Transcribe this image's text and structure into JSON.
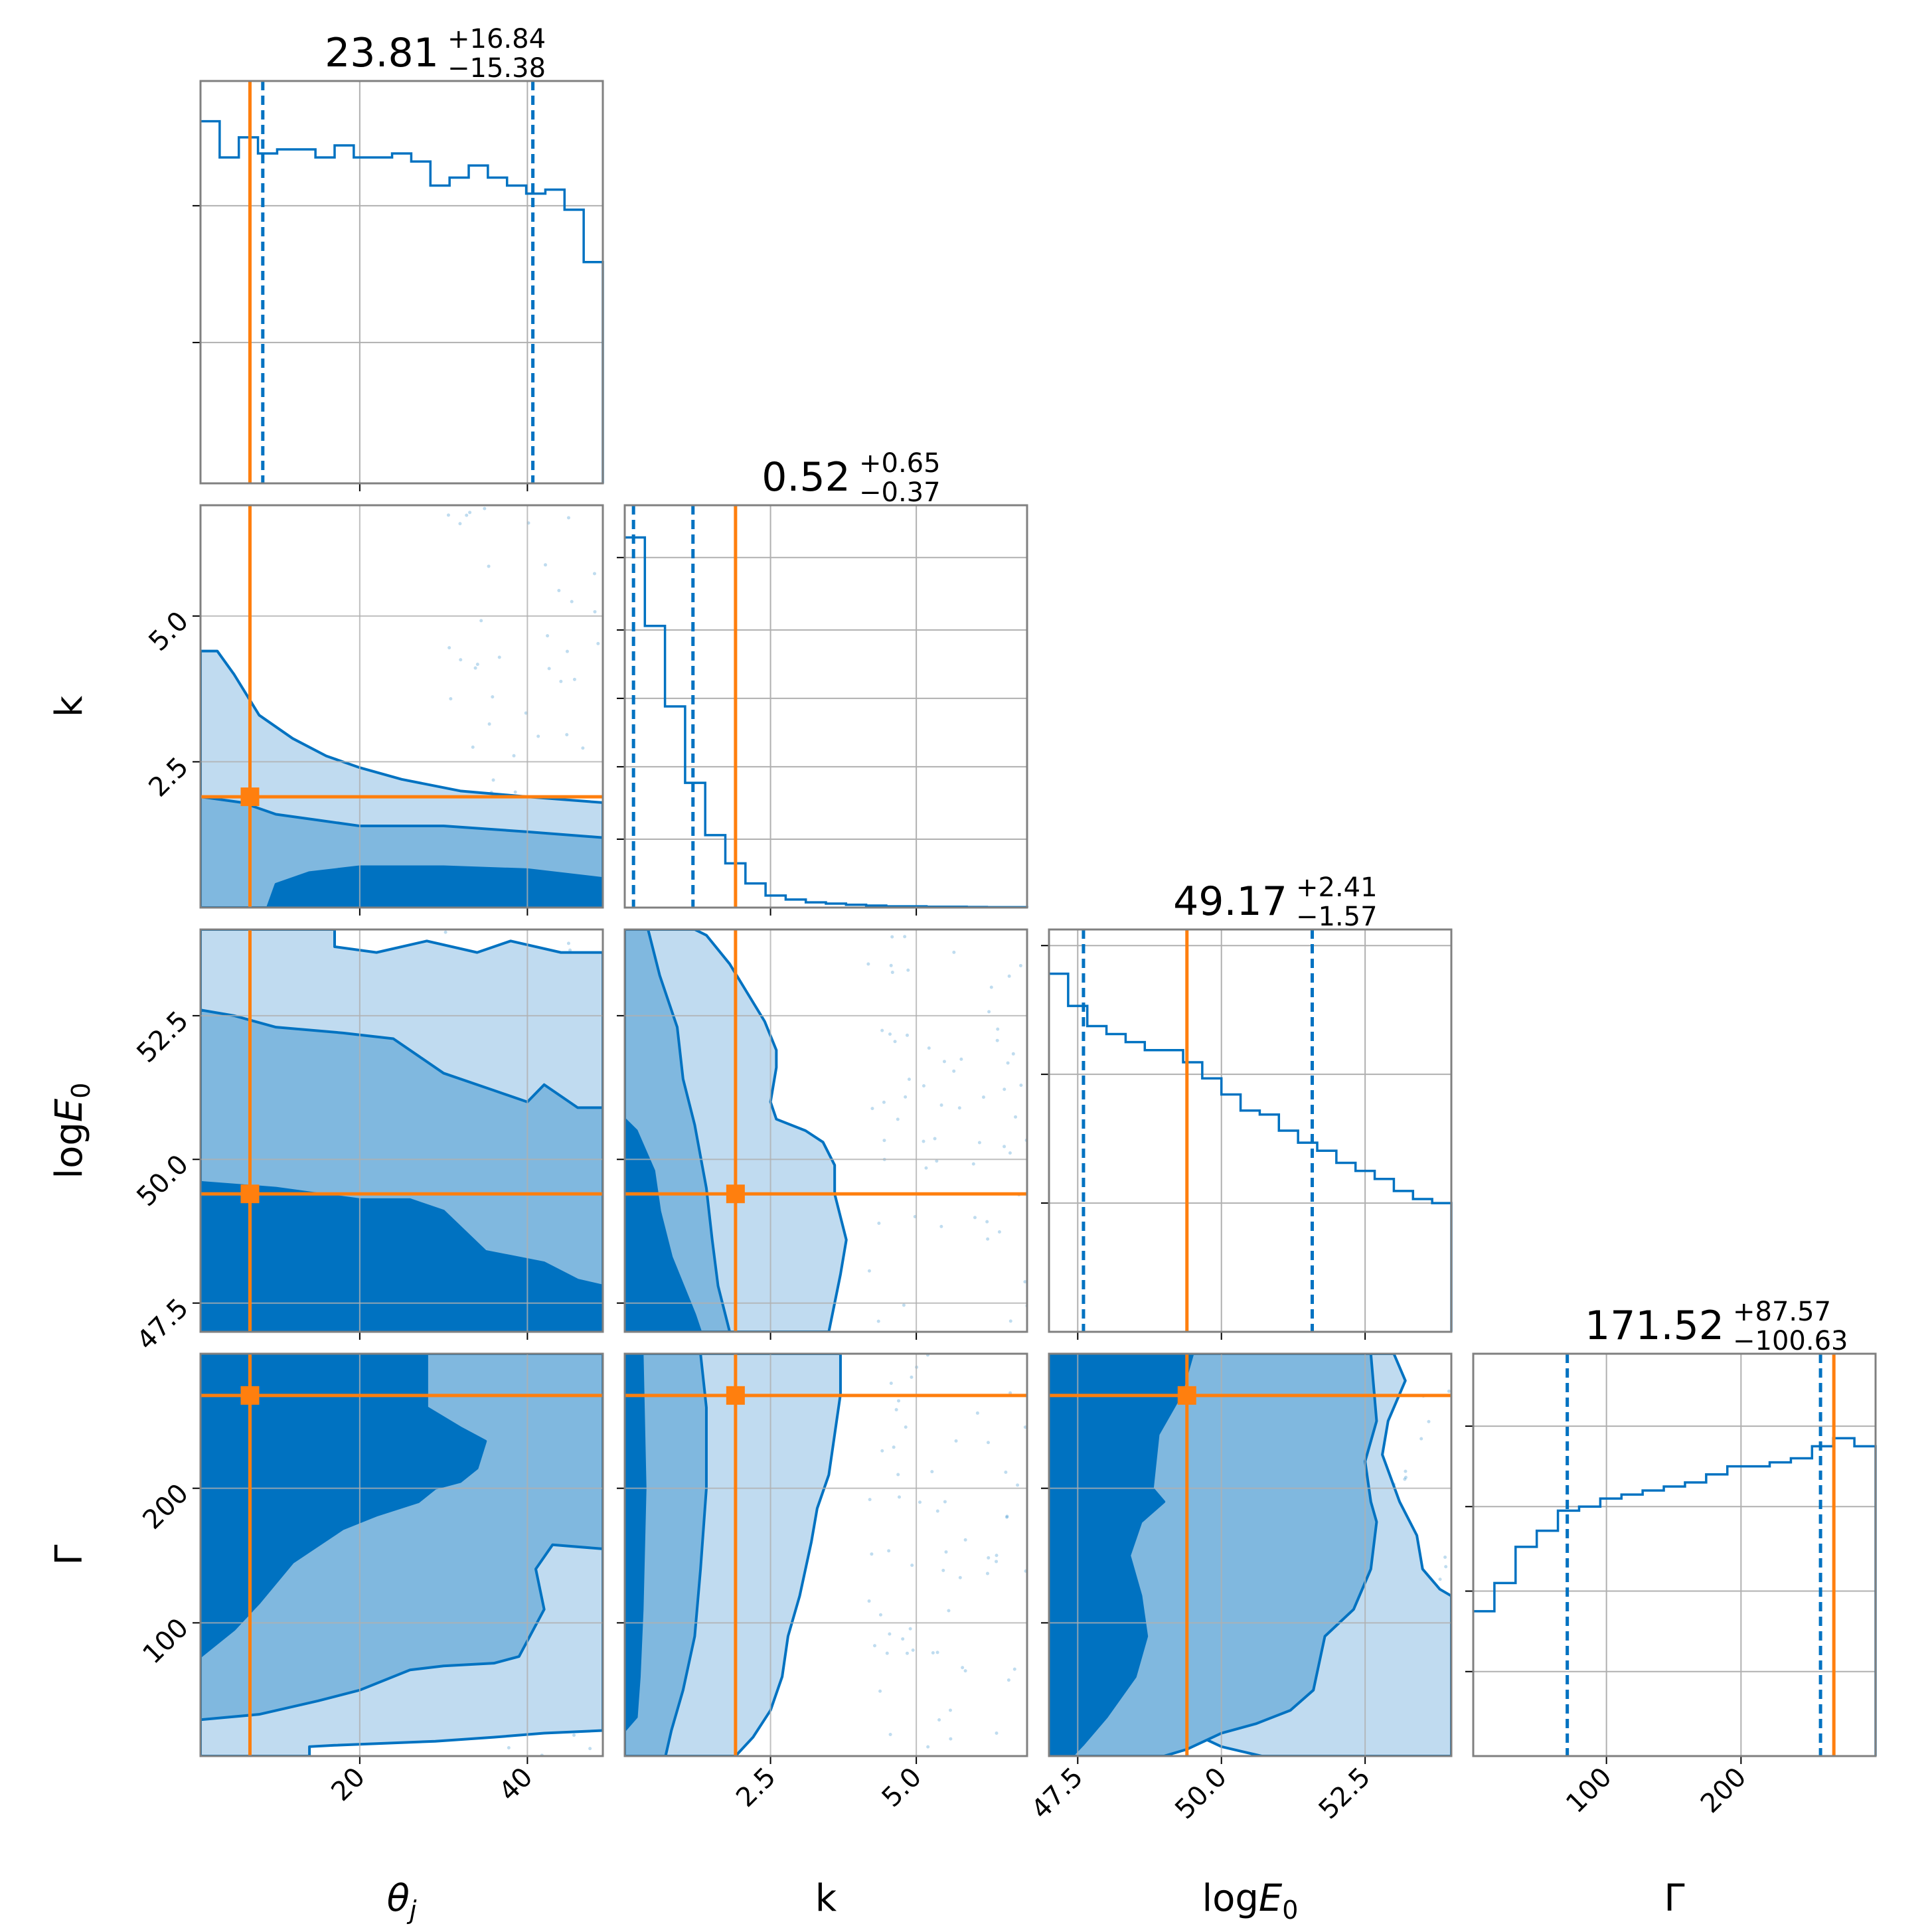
{
  "chart_data": {
    "type": "corner",
    "title": "",
    "truth_color": "#ff7f0e",
    "posterior_color": "#0072c1",
    "fill_colors": [
      "#c0dbf0",
      "#80b8df",
      "#0072c1"
    ],
    "parameters": [
      {
        "key": "theta_j",
        "label": "θ",
        "label_sub": "j",
        "label_style": "italic",
        "range": [
          1,
          49
        ],
        "ticks": [
          20,
          40
        ],
        "tick_labels": [
          "20",
          "40"
        ],
        "median": 23.81,
        "plus": "+16.84",
        "minus": "−15.38",
        "median_text": "23.81",
        "q_low": 8.43,
        "q_high": 40.65,
        "truth": 6.9
      },
      {
        "key": "k",
        "label": "k",
        "label_sub": "",
        "label_style": "normal",
        "range": [
          0.0,
          6.9
        ],
        "ticks": [
          2.5,
          5.0
        ],
        "tick_labels": [
          "2.5",
          "5.0"
        ],
        "median": 0.52,
        "plus": "+0.65",
        "minus": "−0.37",
        "median_text": "0.52",
        "q_low": 0.15,
        "q_high": 1.17,
        "truth": 1.9
      },
      {
        "key": "logE0",
        "label": "log",
        "label_math": "E",
        "label_sub": "0",
        "label_style": "math",
        "range": [
          47.0,
          54.0
        ],
        "ticks": [
          47.5,
          50.0,
          52.5
        ],
        "tick_labels": [
          "47.5",
          "50.0",
          "52.5"
        ],
        "median": 49.17,
        "plus": "+2.41",
        "minus": "−1.57",
        "median_text": "49.17",
        "q_low": 47.6,
        "q_high": 51.58,
        "truth": 49.4
      },
      {
        "key": "Gamma",
        "label": "Γ",
        "label_sub": "",
        "label_style": "normal",
        "range": [
          1,
          300
        ],
        "ticks": [
          100,
          200
        ],
        "tick_labels": [
          "100",
          "200"
        ],
        "median": 171.52,
        "plus": "+87.57",
        "minus": "−100.63",
        "median_text": "171.52",
        "q_low": 70.89,
        "q_high": 259.09,
        "truth": 269
      }
    ],
    "histograms": {
      "theta_j": [
        0.9,
        0.81,
        0.86,
        0.82,
        0.83,
        0.83,
        0.81,
        0.84,
        0.81,
        0.81,
        0.82,
        0.8,
        0.74,
        0.76,
        0.79,
        0.76,
        0.74,
        0.72,
        0.73,
        0.68,
        0.55
      ],
      "k": [
        0.92,
        0.7,
        0.5,
        0.31,
        0.18,
        0.11,
        0.06,
        0.03,
        0.02,
        0.013,
        0.01,
        0.007,
        0.005,
        0.003,
        0.003,
        0.002,
        0.002,
        0.0015,
        0.001,
        0.001
      ],
      "logE0": [
        0.89,
        0.81,
        0.76,
        0.74,
        0.72,
        0.7,
        0.7,
        0.67,
        0.63,
        0.59,
        0.55,
        0.54,
        0.5,
        0.47,
        0.45,
        0.42,
        0.4,
        0.38,
        0.35,
        0.33,
        0.32
      ],
      "Gamma": [
        0.36,
        0.43,
        0.52,
        0.56,
        0.61,
        0.62,
        0.64,
        0.65,
        0.66,
        0.67,
        0.68,
        0.7,
        0.72,
        0.72,
        0.73,
        0.74,
        0.77,
        0.79,
        0.77
      ]
    },
    "hist_yticks": {
      "theta_j": [
        0.35,
        0.69
      ],
      "k": [
        0.17,
        0.35,
        0.52,
        0.69,
        0.87
      ],
      "logE0": [
        0.32,
        0.64,
        0.96
      ],
      "Gamma": [
        0.21,
        0.41,
        0.62,
        0.82
      ]
    },
    "contours_2d": {
      "k|theta_j": {
        "level1": [
          [
            1,
            4.4
          ],
          [
            3,
            4.4
          ],
          [
            5,
            4.0
          ],
          [
            8,
            3.3
          ],
          [
            12,
            2.9
          ],
          [
            16,
            2.6
          ],
          [
            20,
            2.4
          ],
          [
            25,
            2.2
          ],
          [
            32,
            2.0
          ],
          [
            40,
            1.9
          ],
          [
            49,
            1.8
          ],
          [
            49,
            0.0
          ],
          [
            1,
            0.0
          ]
        ],
        "level2": [
          [
            1,
            1.9
          ],
          [
            6,
            1.8
          ],
          [
            10,
            1.6
          ],
          [
            15,
            1.5
          ],
          [
            20,
            1.4
          ],
          [
            30,
            1.4
          ],
          [
            40,
            1.3
          ],
          [
            49,
            1.2
          ],
          [
            49,
            0.0
          ],
          [
            1,
            0.0
          ]
        ],
        "level3": [
          [
            9,
            0.0
          ],
          [
            10,
            0.4
          ],
          [
            14,
            0.6
          ],
          [
            20,
            0.7
          ],
          [
            30,
            0.7
          ],
          [
            40,
            0.65
          ],
          [
            49,
            0.5
          ],
          [
            49,
            0.0
          ]
        ]
      },
      "logE0|theta_j": {
        "level1": [
          [
            1,
            47.0
          ],
          [
            1,
            54.0
          ],
          [
            17,
            54.0
          ],
          [
            17,
            53.7
          ],
          [
            22,
            53.6
          ],
          [
            28,
            53.8
          ],
          [
            34,
            53.6
          ],
          [
            38,
            53.8
          ],
          [
            44,
            53.6
          ],
          [
            49,
            53.6
          ],
          [
            49,
            47.0
          ]
        ],
        "level2": [
          [
            1,
            52.6
          ],
          [
            5,
            52.5
          ],
          [
            10,
            52.3
          ],
          [
            18,
            52.2
          ],
          [
            24,
            52.1
          ],
          [
            27,
            51.8
          ],
          [
            30,
            51.5
          ],
          [
            36,
            51.2
          ],
          [
            40,
            51.0
          ],
          [
            42,
            51.3
          ],
          [
            46,
            50.9
          ],
          [
            49,
            50.9
          ],
          [
            49,
            47.0
          ],
          [
            1,
            47.0
          ]
        ],
        "level3": [
          [
            1,
            49.6
          ],
          [
            10,
            49.5
          ],
          [
            20,
            49.3
          ],
          [
            26,
            49.3
          ],
          [
            30,
            49.1
          ],
          [
            35,
            48.4
          ],
          [
            42,
            48.2
          ],
          [
            46,
            47.9
          ],
          [
            49,
            47.8
          ],
          [
            49,
            47.0
          ],
          [
            1,
            47.0
          ]
        ]
      },
      "Gamma|theta_j": {
        "level1": [
          [
            1,
            1
          ],
          [
            1,
            300
          ],
          [
            49,
            300
          ],
          [
            49,
            20
          ],
          [
            42,
            18
          ],
          [
            36,
            15
          ],
          [
            29,
            12
          ],
          [
            17,
            9
          ],
          [
            14,
            8
          ],
          [
            14,
            1
          ]
        ],
        "level2": [
          [
            1,
            300
          ],
          [
            49,
            300
          ],
          [
            49,
            155
          ],
          [
            43,
            158
          ],
          [
            41,
            140
          ],
          [
            42,
            110
          ],
          [
            39,
            75
          ],
          [
            36,
            70
          ],
          [
            30,
            68
          ],
          [
            26,
            65
          ],
          [
            20,
            50
          ],
          [
            15,
            42
          ],
          [
            8,
            32
          ],
          [
            1,
            28
          ]
        ],
        "level3": [
          [
            1,
            75
          ],
          [
            5,
            95
          ],
          [
            8,
            115
          ],
          [
            12,
            145
          ],
          [
            18,
            170
          ],
          [
            22,
            180
          ],
          [
            27,
            190
          ],
          [
            29,
            200
          ],
          [
            32,
            205
          ],
          [
            34,
            215
          ],
          [
            35,
            235
          ],
          [
            32,
            245
          ],
          [
            28,
            260
          ],
          [
            28,
            300
          ],
          [
            1,
            300
          ]
        ]
      },
      "logE0|k": {
        "level1": [
          [
            0.0,
            47.0
          ],
          [
            0.0,
            54.0
          ],
          [
            1.2,
            54.0
          ],
          [
            1.4,
            53.9
          ],
          [
            1.8,
            53.4
          ],
          [
            2.1,
            52.9
          ],
          [
            2.4,
            52.4
          ],
          [
            2.6,
            51.9
          ],
          [
            2.6,
            51.6
          ],
          [
            2.5,
            51.0
          ],
          [
            2.6,
            50.7
          ],
          [
            3.1,
            50.5
          ],
          [
            3.4,
            50.3
          ],
          [
            3.6,
            49.9
          ],
          [
            3.6,
            49.4
          ],
          [
            3.7,
            49.0
          ],
          [
            3.8,
            48.6
          ],
          [
            3.7,
            48.0
          ],
          [
            3.6,
            47.5
          ],
          [
            3.5,
            47.0
          ]
        ],
        "level2": [
          [
            0.0,
            47.0
          ],
          [
            0.0,
            54.0
          ],
          [
            0.4,
            54.0
          ],
          [
            0.6,
            53.2
          ],
          [
            0.9,
            52.3
          ],
          [
            1.0,
            51.4
          ],
          [
            1.2,
            50.6
          ],
          [
            1.4,
            49.5
          ],
          [
            1.5,
            48.6
          ],
          [
            1.6,
            47.8
          ],
          [
            1.8,
            47.0
          ]
        ],
        "level3": [
          [
            0.0,
            47.0
          ],
          [
            0.0,
            50.7
          ],
          [
            0.2,
            50.5
          ],
          [
            0.5,
            49.8
          ],
          [
            0.6,
            49.1
          ],
          [
            0.8,
            48.3
          ],
          [
            1.0,
            47.8
          ],
          [
            1.2,
            47.3
          ],
          [
            1.3,
            47.0
          ]
        ]
      },
      "Gamma|k": {
        "level1": [
          [
            0.0,
            1
          ],
          [
            0.0,
            300
          ],
          [
            3.7,
            300
          ],
          [
            3.7,
            270
          ],
          [
            3.6,
            240
          ],
          [
            3.5,
            210
          ],
          [
            3.3,
            185
          ],
          [
            3.2,
            160
          ],
          [
            3.0,
            120
          ],
          [
            2.8,
            90
          ],
          [
            2.7,
            60
          ],
          [
            2.5,
            35
          ],
          [
            2.2,
            15
          ],
          [
            1.9,
            1
          ]
        ],
        "level2": [
          [
            0.0,
            1
          ],
          [
            0.0,
            300
          ],
          [
            1.3,
            300
          ],
          [
            1.4,
            260
          ],
          [
            1.4,
            200
          ],
          [
            1.3,
            140
          ],
          [
            1.2,
            90
          ],
          [
            1.0,
            50
          ],
          [
            0.8,
            20
          ],
          [
            0.7,
            1
          ]
        ],
        "level3": [
          [
            0.0,
            20
          ],
          [
            0.0,
            300
          ],
          [
            0.3,
            300
          ],
          [
            0.35,
            200
          ],
          [
            0.3,
            110
          ],
          [
            0.25,
            60
          ],
          [
            0.2,
            30
          ]
        ]
      },
      "Gamma|logE0": {
        "level1": [
          [
            47.0,
            1
          ],
          [
            47.0,
            300
          ],
          [
            53.0,
            300
          ],
          [
            53.2,
            280
          ],
          [
            52.9,
            250
          ],
          [
            52.8,
            225
          ],
          [
            53.1,
            190
          ],
          [
            53.4,
            165
          ],
          [
            53.5,
            140
          ],
          [
            53.8,
            125
          ],
          [
            54.0,
            120
          ],
          [
            54.0,
            1
          ],
          [
            50.7,
            1
          ],
          [
            50.3,
            5
          ],
          [
            50.0,
            8
          ],
          [
            49.8,
            12
          ],
          [
            49.5,
            18
          ],
          [
            49.0,
            10
          ],
          [
            48.6,
            5
          ],
          [
            48.3,
            1
          ]
        ],
        "level2": [
          [
            47.0,
            1
          ],
          [
            47.0,
            300
          ],
          [
            52.6,
            300
          ],
          [
            52.7,
            250
          ],
          [
            52.5,
            220
          ],
          [
            52.6,
            190
          ],
          [
            52.7,
            175
          ],
          [
            52.6,
            140
          ],
          [
            52.3,
            110
          ],
          [
            51.8,
            90
          ],
          [
            51.6,
            50
          ],
          [
            51.2,
            35
          ],
          [
            50.6,
            25
          ],
          [
            50.0,
            18
          ],
          [
            49.7,
            12
          ],
          [
            49.4,
            6
          ],
          [
            49.0,
            1
          ]
        ],
        "level3": [
          [
            47.0,
            1
          ],
          [
            47.0,
            300
          ],
          [
            49.5,
            300
          ],
          [
            49.3,
            270
          ],
          [
            48.9,
            240
          ],
          [
            48.8,
            200
          ],
          [
            49.0,
            190
          ],
          [
            48.6,
            175
          ],
          [
            48.4,
            150
          ],
          [
            48.6,
            120
          ],
          [
            48.7,
            90
          ],
          [
            48.5,
            60
          ],
          [
            48.0,
            30
          ],
          [
            47.6,
            10
          ],
          [
            47.4,
            1
          ]
        ]
      }
    }
  }
}
